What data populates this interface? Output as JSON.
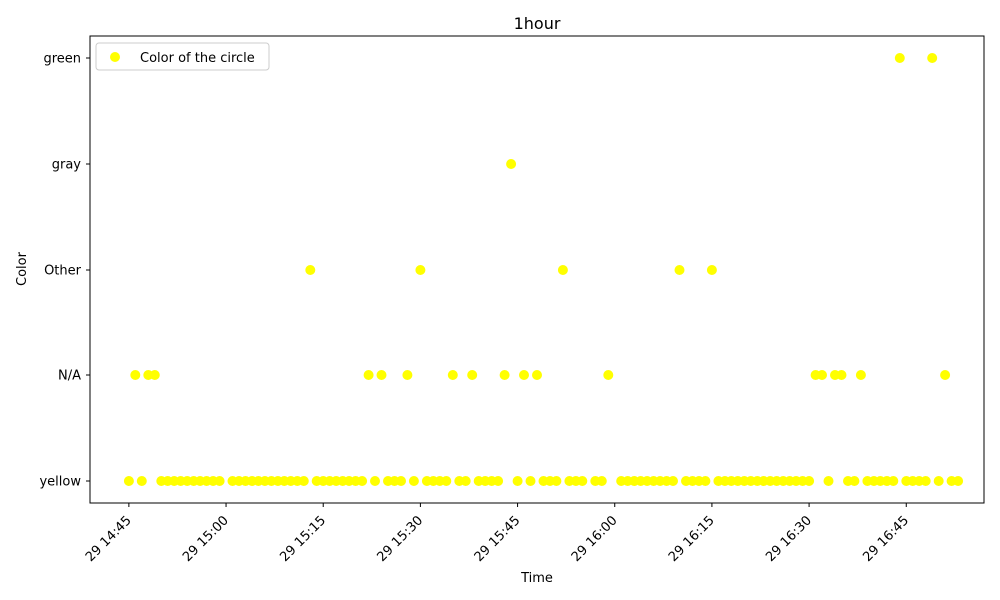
{
  "chart_data": {
    "type": "scatter",
    "title": "1hour",
    "xlabel": "Time",
    "ylabel": "Color",
    "x_ticks": [
      {
        "label": "29 14:45",
        "minute": 885
      },
      {
        "label": "29 15:00",
        "minute": 900
      },
      {
        "label": "29 15:15",
        "minute": 915
      },
      {
        "label": "29 15:30",
        "minute": 930
      },
      {
        "label": "29 15:45",
        "minute": 945
      },
      {
        "label": "29 16:00",
        "minute": 960
      },
      {
        "label": "29 16:15",
        "minute": 975
      },
      {
        "label": "29 16:30",
        "minute": 990
      },
      {
        "label": "29 16:45",
        "minute": 1005
      }
    ],
    "xlim": [
      "29 14:39",
      "29 16:57"
    ],
    "y_categories": [
      "yellow",
      "N/A",
      "Other",
      "gray",
      "green"
    ],
    "legend": {
      "label": "Color of the circle",
      "position": "top-left"
    },
    "marker_color": "#ffff00",
    "grid": false,
    "series": [
      {
        "name": "Color of the circle",
        "points": [
          {
            "x": "29 14:45",
            "y": "yellow"
          },
          {
            "x": "29 14:46",
            "y": "N/A"
          },
          {
            "x": "29 14:47",
            "y": "yellow"
          },
          {
            "x": "29 14:48",
            "y": "N/A"
          },
          {
            "x": "29 14:49",
            "y": "N/A"
          },
          {
            "x": "29 14:50",
            "y": "yellow"
          },
          {
            "x": "29 14:51",
            "y": "yellow"
          },
          {
            "x": "29 14:52",
            "y": "yellow"
          },
          {
            "x": "29 14:53",
            "y": "yellow"
          },
          {
            "x": "29 14:54",
            "y": "yellow"
          },
          {
            "x": "29 14:55",
            "y": "yellow"
          },
          {
            "x": "29 14:56",
            "y": "yellow"
          },
          {
            "x": "29 14:57",
            "y": "yellow"
          },
          {
            "x": "29 14:58",
            "y": "yellow"
          },
          {
            "x": "29 14:59",
            "y": "yellow"
          },
          {
            "x": "29 15:01",
            "y": "yellow"
          },
          {
            "x": "29 15:02",
            "y": "yellow"
          },
          {
            "x": "29 15:03",
            "y": "yellow"
          },
          {
            "x": "29 15:04",
            "y": "yellow"
          },
          {
            "x": "29 15:05",
            "y": "yellow"
          },
          {
            "x": "29 15:06",
            "y": "yellow"
          },
          {
            "x": "29 15:07",
            "y": "yellow"
          },
          {
            "x": "29 15:08",
            "y": "yellow"
          },
          {
            "x": "29 15:09",
            "y": "yellow"
          },
          {
            "x": "29 15:10",
            "y": "yellow"
          },
          {
            "x": "29 15:11",
            "y": "yellow"
          },
          {
            "x": "29 15:12",
            "y": "yellow"
          },
          {
            "x": "29 15:13",
            "y": "Other"
          },
          {
            "x": "29 15:14",
            "y": "yellow"
          },
          {
            "x": "29 15:15",
            "y": "yellow"
          },
          {
            "x": "29 15:16",
            "y": "yellow"
          },
          {
            "x": "29 15:17",
            "y": "yellow"
          },
          {
            "x": "29 15:18",
            "y": "yellow"
          },
          {
            "x": "29 15:19",
            "y": "yellow"
          },
          {
            "x": "29 15:20",
            "y": "yellow"
          },
          {
            "x": "29 15:21",
            "y": "yellow"
          },
          {
            "x": "29 15:22",
            "y": "N/A"
          },
          {
            "x": "29 15:23",
            "y": "yellow"
          },
          {
            "x": "29 15:24",
            "y": "N/A"
          },
          {
            "x": "29 15:25",
            "y": "yellow"
          },
          {
            "x": "29 15:26",
            "y": "yellow"
          },
          {
            "x": "29 15:27",
            "y": "yellow"
          },
          {
            "x": "29 15:28",
            "y": "N/A"
          },
          {
            "x": "29 15:29",
            "y": "yellow"
          },
          {
            "x": "29 15:30",
            "y": "Other"
          },
          {
            "x": "29 15:31",
            "y": "yellow"
          },
          {
            "x": "29 15:32",
            "y": "yellow"
          },
          {
            "x": "29 15:33",
            "y": "yellow"
          },
          {
            "x": "29 15:34",
            "y": "yellow"
          },
          {
            "x": "29 15:35",
            "y": "N/A"
          },
          {
            "x": "29 15:36",
            "y": "yellow"
          },
          {
            "x": "29 15:37",
            "y": "yellow"
          },
          {
            "x": "29 15:38",
            "y": "N/A"
          },
          {
            "x": "29 15:39",
            "y": "yellow"
          },
          {
            "x": "29 15:40",
            "y": "yellow"
          },
          {
            "x": "29 15:41",
            "y": "yellow"
          },
          {
            "x": "29 15:42",
            "y": "yellow"
          },
          {
            "x": "29 15:43",
            "y": "N/A"
          },
          {
            "x": "29 15:44",
            "y": "gray"
          },
          {
            "x": "29 15:45",
            "y": "yellow"
          },
          {
            "x": "29 15:46",
            "y": "N/A"
          },
          {
            "x": "29 15:47",
            "y": "yellow"
          },
          {
            "x": "29 15:48",
            "y": "N/A"
          },
          {
            "x": "29 15:49",
            "y": "yellow"
          },
          {
            "x": "29 15:50",
            "y": "yellow"
          },
          {
            "x": "29 15:51",
            "y": "yellow"
          },
          {
            "x": "29 15:52",
            "y": "Other"
          },
          {
            "x": "29 15:53",
            "y": "yellow"
          },
          {
            "x": "29 15:54",
            "y": "yellow"
          },
          {
            "x": "29 15:55",
            "y": "yellow"
          },
          {
            "x": "29 15:57",
            "y": "yellow"
          },
          {
            "x": "29 15:58",
            "y": "yellow"
          },
          {
            "x": "29 15:59",
            "y": "N/A"
          },
          {
            "x": "29 16:01",
            "y": "yellow"
          },
          {
            "x": "29 16:02",
            "y": "yellow"
          },
          {
            "x": "29 16:03",
            "y": "yellow"
          },
          {
            "x": "29 16:04",
            "y": "yellow"
          },
          {
            "x": "29 16:05",
            "y": "yellow"
          },
          {
            "x": "29 16:06",
            "y": "yellow"
          },
          {
            "x": "29 16:07",
            "y": "yellow"
          },
          {
            "x": "29 16:08",
            "y": "yellow"
          },
          {
            "x": "29 16:09",
            "y": "yellow"
          },
          {
            "x": "29 16:10",
            "y": "Other"
          },
          {
            "x": "29 16:11",
            "y": "yellow"
          },
          {
            "x": "29 16:12",
            "y": "yellow"
          },
          {
            "x": "29 16:13",
            "y": "yellow"
          },
          {
            "x": "29 16:14",
            "y": "yellow"
          },
          {
            "x": "29 16:15",
            "y": "Other"
          },
          {
            "x": "29 16:16",
            "y": "yellow"
          },
          {
            "x": "29 16:17",
            "y": "yellow"
          },
          {
            "x": "29 16:18",
            "y": "yellow"
          },
          {
            "x": "29 16:19",
            "y": "yellow"
          },
          {
            "x": "29 16:20",
            "y": "yellow"
          },
          {
            "x": "29 16:21",
            "y": "yellow"
          },
          {
            "x": "29 16:22",
            "y": "yellow"
          },
          {
            "x": "29 16:23",
            "y": "yellow"
          },
          {
            "x": "29 16:24",
            "y": "yellow"
          },
          {
            "x": "29 16:25",
            "y": "yellow"
          },
          {
            "x": "29 16:26",
            "y": "yellow"
          },
          {
            "x": "29 16:27",
            "y": "yellow"
          },
          {
            "x": "29 16:28",
            "y": "yellow"
          },
          {
            "x": "29 16:29",
            "y": "yellow"
          },
          {
            "x": "29 16:30",
            "y": "yellow"
          },
          {
            "x": "29 16:31",
            "y": "N/A"
          },
          {
            "x": "29 16:32",
            "y": "N/A"
          },
          {
            "x": "29 16:33",
            "y": "yellow"
          },
          {
            "x": "29 16:34",
            "y": "N/A"
          },
          {
            "x": "29 16:35",
            "y": "N/A"
          },
          {
            "x": "29 16:36",
            "y": "yellow"
          },
          {
            "x": "29 16:37",
            "y": "yellow"
          },
          {
            "x": "29 16:38",
            "y": "N/A"
          },
          {
            "x": "29 16:39",
            "y": "yellow"
          },
          {
            "x": "29 16:40",
            "y": "yellow"
          },
          {
            "x": "29 16:41",
            "y": "yellow"
          },
          {
            "x": "29 16:42",
            "y": "yellow"
          },
          {
            "x": "29 16:43",
            "y": "yellow"
          },
          {
            "x": "29 16:44",
            "y": "green"
          },
          {
            "x": "29 16:45",
            "y": "yellow"
          },
          {
            "x": "29 16:46",
            "y": "yellow"
          },
          {
            "x": "29 16:47",
            "y": "yellow"
          },
          {
            "x": "29 16:48",
            "y": "yellow"
          },
          {
            "x": "29 16:49",
            "y": "green"
          },
          {
            "x": "29 16:50",
            "y": "yellow"
          },
          {
            "x": "29 16:51",
            "y": "N/A"
          },
          {
            "x": "29 16:52",
            "y": "yellow"
          },
          {
            "x": "29 16:53",
            "y": "yellow"
          }
        ]
      }
    ]
  }
}
